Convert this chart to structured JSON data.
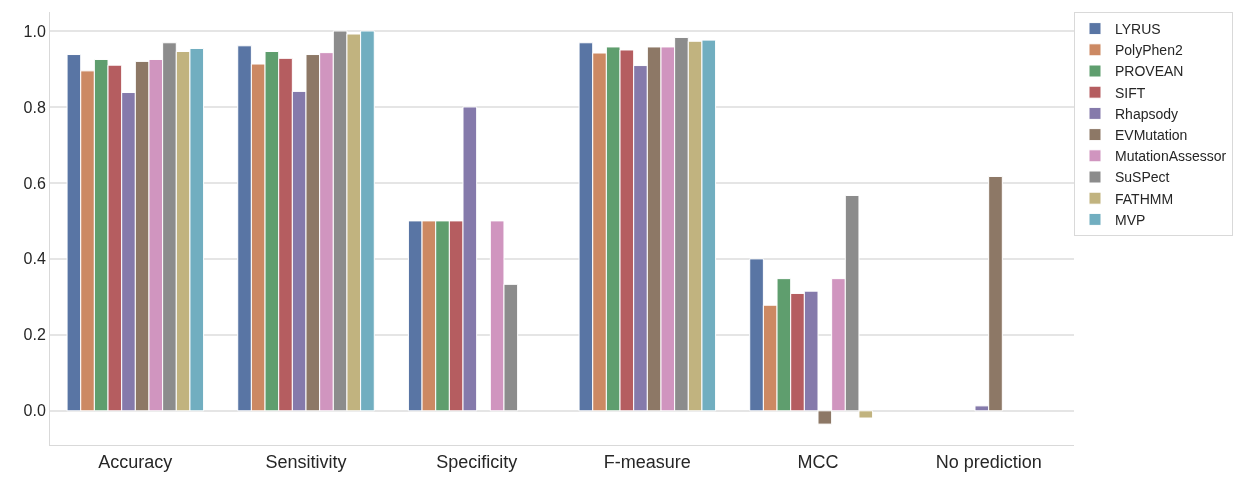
{
  "chart_data": {
    "type": "bar",
    "categories": [
      "Accuracy",
      "Sensitivity",
      "Specificity",
      "F-measure",
      "MCC",
      "No prediction"
    ],
    "series": [
      {
        "name": "LYRUS",
        "color": "#5975a4",
        "values": [
          0.938,
          0.961,
          0.5,
          0.969,
          0.4,
          0
        ]
      },
      {
        "name": "PolyPhen2",
        "color": "#cc8963",
        "values": [
          0.895,
          0.913,
          0.5,
          0.942,
          0.278,
          0
        ]
      },
      {
        "name": "PROVEAN",
        "color": "#5f9e6e",
        "values": [
          0.925,
          0.946,
          0.5,
          0.958,
          0.348,
          0
        ]
      },
      {
        "name": "SIFT",
        "color": "#b55d60",
        "values": [
          0.91,
          0.928,
          0.5,
          0.95,
          0.309,
          0
        ]
      },
      {
        "name": "Rhapsody",
        "color": "#857aab",
        "values": [
          0.838,
          0.841,
          0.8,
          0.909,
          0.315,
          0.013
        ]
      },
      {
        "name": "EVMutation",
        "color": "#8d7866",
        "values": [
          0.92,
          0.938,
          0,
          0.958,
          -0.035,
          0.617
        ]
      },
      {
        "name": "MutationAssessor",
        "color": "#d095bf",
        "values": [
          0.925,
          0.943,
          0.5,
          0.958,
          0.348,
          0
        ]
      },
      {
        "name": "SuSPect",
        "color": "#8c8c8c",
        "values": [
          0.969,
          1.0,
          0.333,
          0.983,
          0.567,
          0
        ]
      },
      {
        "name": "FATHMM",
        "color": "#c1b37f",
        "values": [
          0.946,
          0.992,
          0,
          0.973,
          -0.019,
          0
        ]
      },
      {
        "name": "MVP",
        "color": "#71aec0",
        "values": [
          0.954,
          1.0,
          0,
          0.976,
          0,
          0
        ]
      }
    ],
    "ylim": [
      -0.09,
      1.05
    ],
    "yticks": [
      {
        "value": 0.0,
        "label": "0.0"
      },
      {
        "value": 0.2,
        "label": "0.2"
      },
      {
        "value": 0.4,
        "label": "0.4"
      },
      {
        "value": 0.6,
        "label": "0.6"
      },
      {
        "value": 0.8,
        "label": "0.8"
      },
      {
        "value": 1.0,
        "label": "1.0"
      }
    ],
    "grid": "y",
    "legend": "top right"
  }
}
